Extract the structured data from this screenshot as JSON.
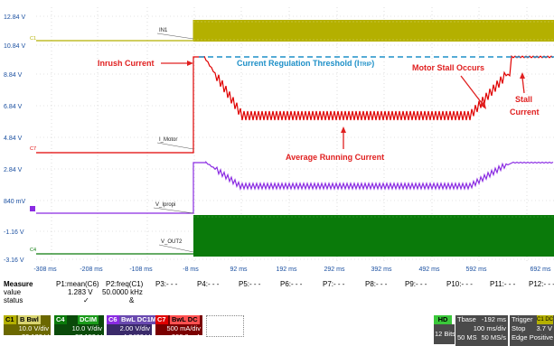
{
  "scope": {
    "y_levels": [
      "12.84 V",
      "10.84 V",
      "8.84 V",
      "6.84 V",
      "4.84 V",
      "2.84 V",
      "840 mV",
      "-1.16 V",
      "-3.16 V"
    ],
    "time_labels": [
      "-308 ms",
      "-208 ms",
      "-108 ms",
      "-8 ms",
      "92 ms",
      "192 ms",
      "292 ms",
      "392 ms",
      "492 ms",
      "592 ms",
      "692 ms"
    ],
    "trace_labels": {
      "in1": "IN1",
      "imotor": "I_Motor",
      "vipropi": "V_Ipropi",
      "vout2": "V_OUT2"
    },
    "channel_markers": {
      "c1": "C1",
      "c7": "C7",
      "c6": "C6",
      "c4": "C4"
    },
    "colors": {
      "c1": "#b4b000",
      "c7": "#e00000",
      "c6": "#8a2be2",
      "c4": "#0a7a0a",
      "annotation": "#e02020",
      "threshold": "#1e90c8"
    }
  },
  "annotations": {
    "inrush": "Inrush Current",
    "threshold": "Current Regulation Threshold (I",
    "threshold_sub": "TRIP",
    "threshold_end": ")",
    "motor_stall": "Motor Stall Occurs",
    "stall_line1": "Stall",
    "stall_line2": "Current",
    "average": "Average Running Current"
  },
  "measure": {
    "headers": [
      "Measure",
      "P1:mean(C6)",
      "P2:freq(C1)",
      "P3:- - -",
      "P4:- - -",
      "P5:- - -",
      "P6:- - -",
      "P7:- - -",
      "P8:- - -",
      "P9:- - -",
      "P10:- - -",
      "P11:- - -",
      "P12:- - -"
    ],
    "value_label": "value",
    "values": [
      "1.283 V",
      "50.0000 kHz"
    ],
    "status_label": "status",
    "status_marks": [
      "✓",
      "&"
    ]
  },
  "channels": [
    {
      "id": "C1",
      "tags": "B  Bwl",
      "per_div": "10.0 V/div",
      "offset": "-30.180 V",
      "color": "#8a8600"
    },
    {
      "id": "C4",
      "tags": "DCIM",
      "per_div": "10.0 V/div",
      "offset": "-37.150 V",
      "color": "#0a6a0a"
    },
    {
      "id": "C6",
      "tags": "BwL DC1M",
      "per_div": "2.00 V/div",
      "offset": "-4.8400 V",
      "color": "#5a3a9a"
    },
    {
      "id": "C7",
      "tags": "BwL DC",
      "per_div": "500 mA/div",
      "offset": "-260.0 mA",
      "color": "#b00000"
    }
  ],
  "timebase": {
    "hd": "HD",
    "bits": "12 Bits",
    "tbase_label": "Tbase",
    "tbase_value": "-192 ms",
    "per_div": "100 ms/div",
    "samples": "50 MS",
    "rate": "50 MS/s",
    "trigger_label": "Trigger",
    "trigger_ch": "C1 DC",
    "trigger_mode": "Stop",
    "trigger_level": "3.7 V",
    "trigger_type": "Edge",
    "trigger_slope": "Positive"
  }
}
